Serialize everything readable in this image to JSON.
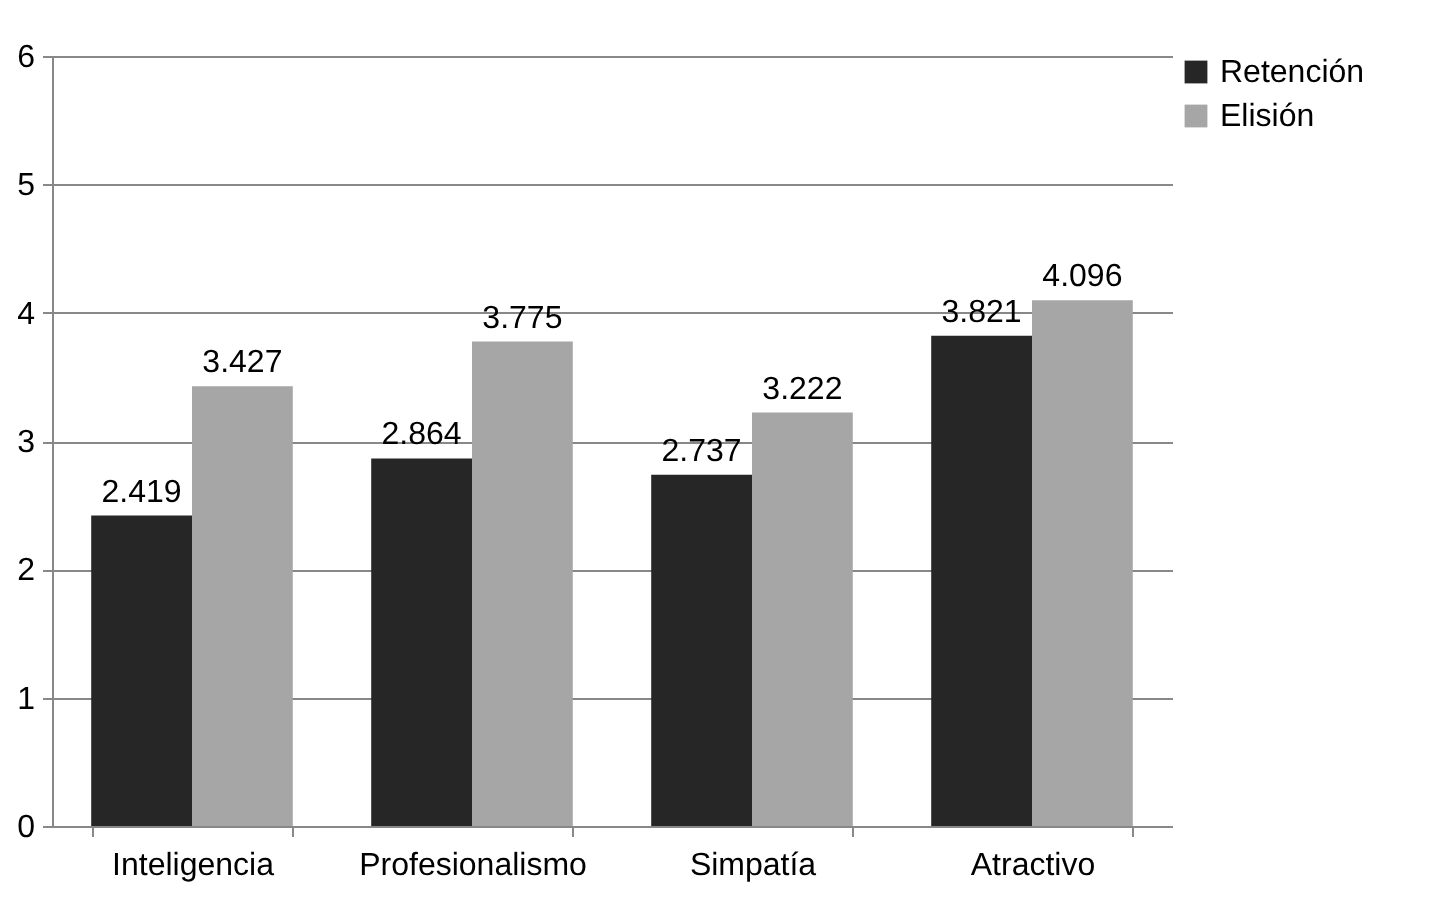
{
  "chart_data": {
    "type": "bar",
    "categories": [
      "Inteligencia",
      "Profesionalismo",
      "Simpatía",
      "Atractivo"
    ],
    "series": [
      {
        "name": "Retención",
        "color": "#262626",
        "values": [
          2.419,
          2.864,
          2.737,
          3.821
        ]
      },
      {
        "name": "Elisión",
        "color": "#a6a6a6",
        "values": [
          3.427,
          3.775,
          3.222,
          4.096
        ]
      }
    ],
    "ylim": [
      0,
      6
    ],
    "yticks": [
      0,
      1,
      2,
      3,
      4,
      5,
      6
    ],
    "grid": "y",
    "legend": "right",
    "data_labels": true
  }
}
